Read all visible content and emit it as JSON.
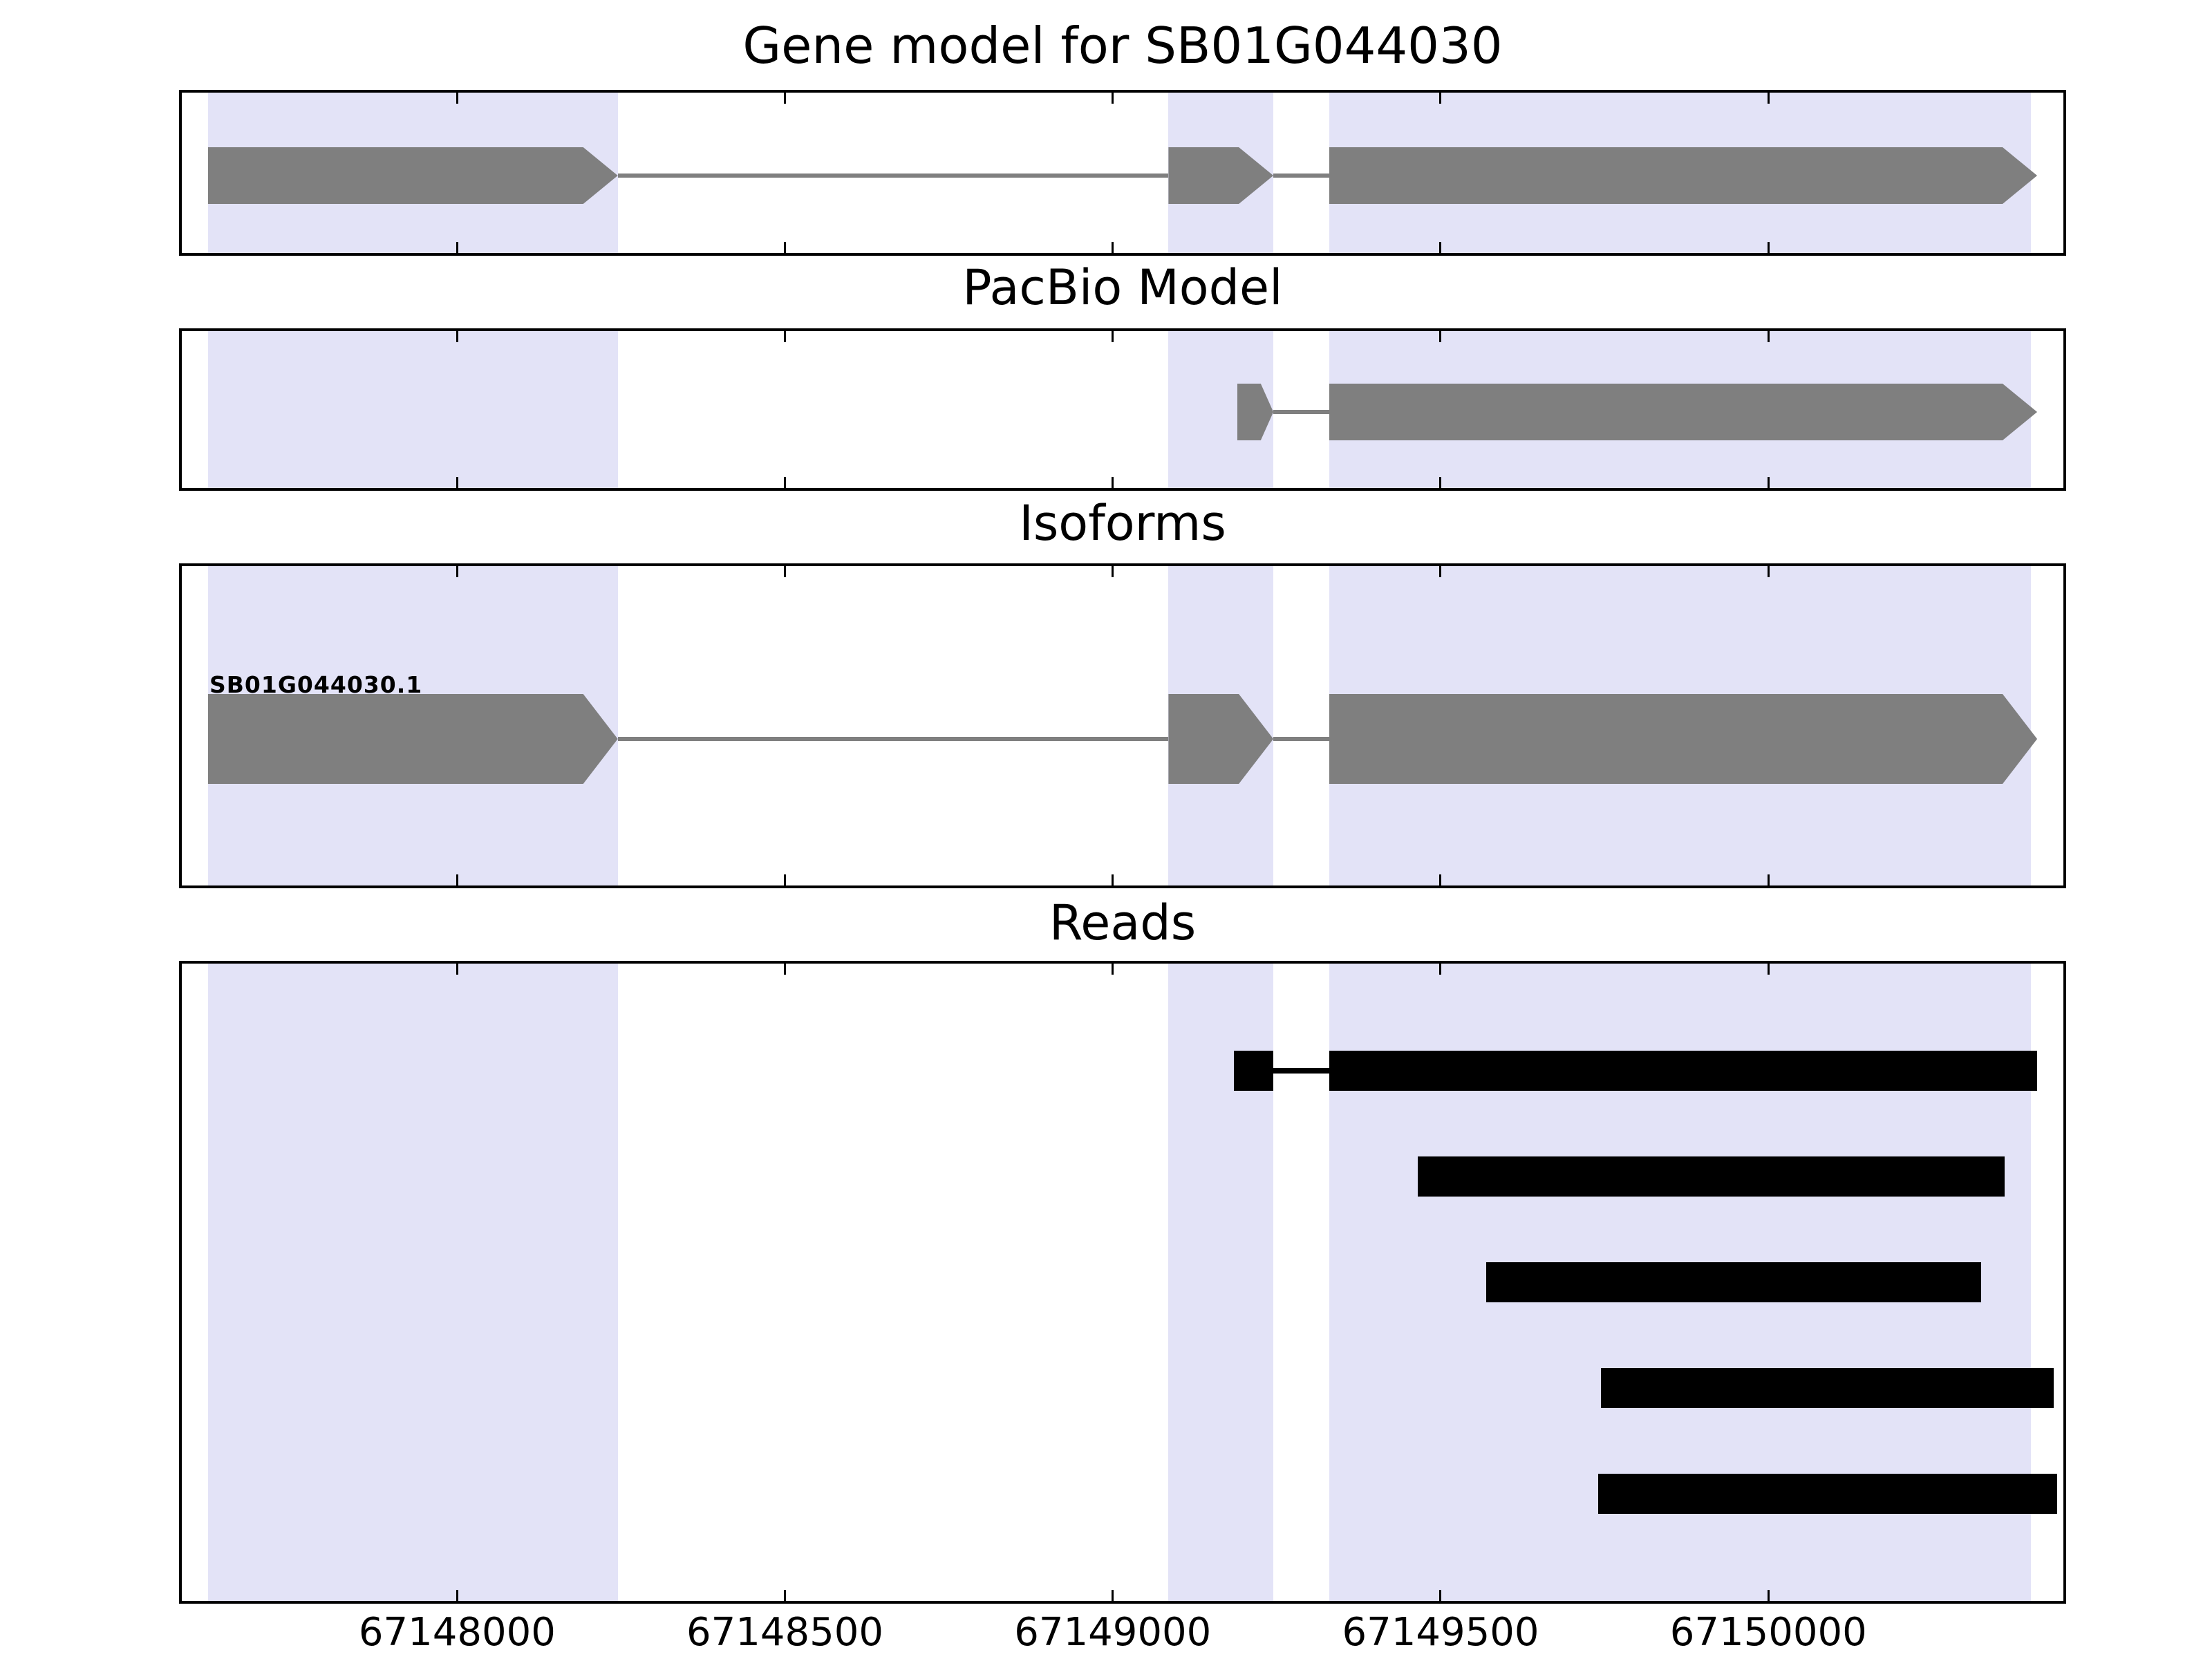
{
  "titles": {
    "gene_model": "Gene model for SB01G044030",
    "pacbio": "PacBio Model",
    "isoforms": "Isoforms",
    "reads": "Reads"
  },
  "colors": {
    "exon_fill": "#7f7f7f",
    "intron_line": "#7f7f7f",
    "read_fill": "#000000",
    "highlight_fill": "#e3e3f7",
    "panel_border": "#000000",
    "text": "#000000"
  },
  "chart_data": {
    "type": "genome-browser",
    "title": "Gene model for SB01G044030",
    "panel_titles": [
      "Gene model for SB01G044030",
      "PacBio Model",
      "Isoforms",
      "Reads"
    ],
    "x_axis": {
      "range": [
        67147580,
        67150450
      ],
      "ticks": [
        67148000,
        67148500,
        67149000,
        67149500,
        67150000
      ],
      "tick_labels": [
        "67148000",
        "67148500",
        "67149000",
        "67149500",
        "67150000"
      ]
    },
    "highlight_regions": [
      {
        "start": 67147620,
        "end": 67148245
      },
      {
        "start": 67149085,
        "end": 67149245
      },
      {
        "start": 67149330,
        "end": 67150400
      }
    ],
    "gene_model": {
      "exons": [
        {
          "start": 67147620,
          "end": 67148245
        },
        {
          "start": 67149085,
          "end": 67149245
        },
        {
          "start": 67149330,
          "end": 67150410
        }
      ]
    },
    "pacbio_model": {
      "exons": [
        {
          "start": 67149190,
          "end": 67149245
        },
        {
          "start": 67149330,
          "end": 67150410
        }
      ]
    },
    "isoforms": [
      {
        "label": "SB01G044030.1",
        "exons": [
          {
            "start": 67147620,
            "end": 67148245
          },
          {
            "start": 67149085,
            "end": 67149245
          },
          {
            "start": 67149330,
            "end": 67150410
          }
        ]
      }
    ],
    "reads": [
      {
        "segments": [
          [
            67149185,
            67149245
          ],
          [
            67149330,
            67150410
          ]
        ]
      },
      {
        "segments": [
          [
            67149465,
            67150360
          ]
        ]
      },
      {
        "segments": [
          [
            67149570,
            67150325
          ]
        ]
      },
      {
        "segments": [
          [
            67149745,
            67150435
          ]
        ]
      },
      {
        "segments": [
          [
            67149740,
            67150440
          ]
        ]
      }
    ]
  }
}
